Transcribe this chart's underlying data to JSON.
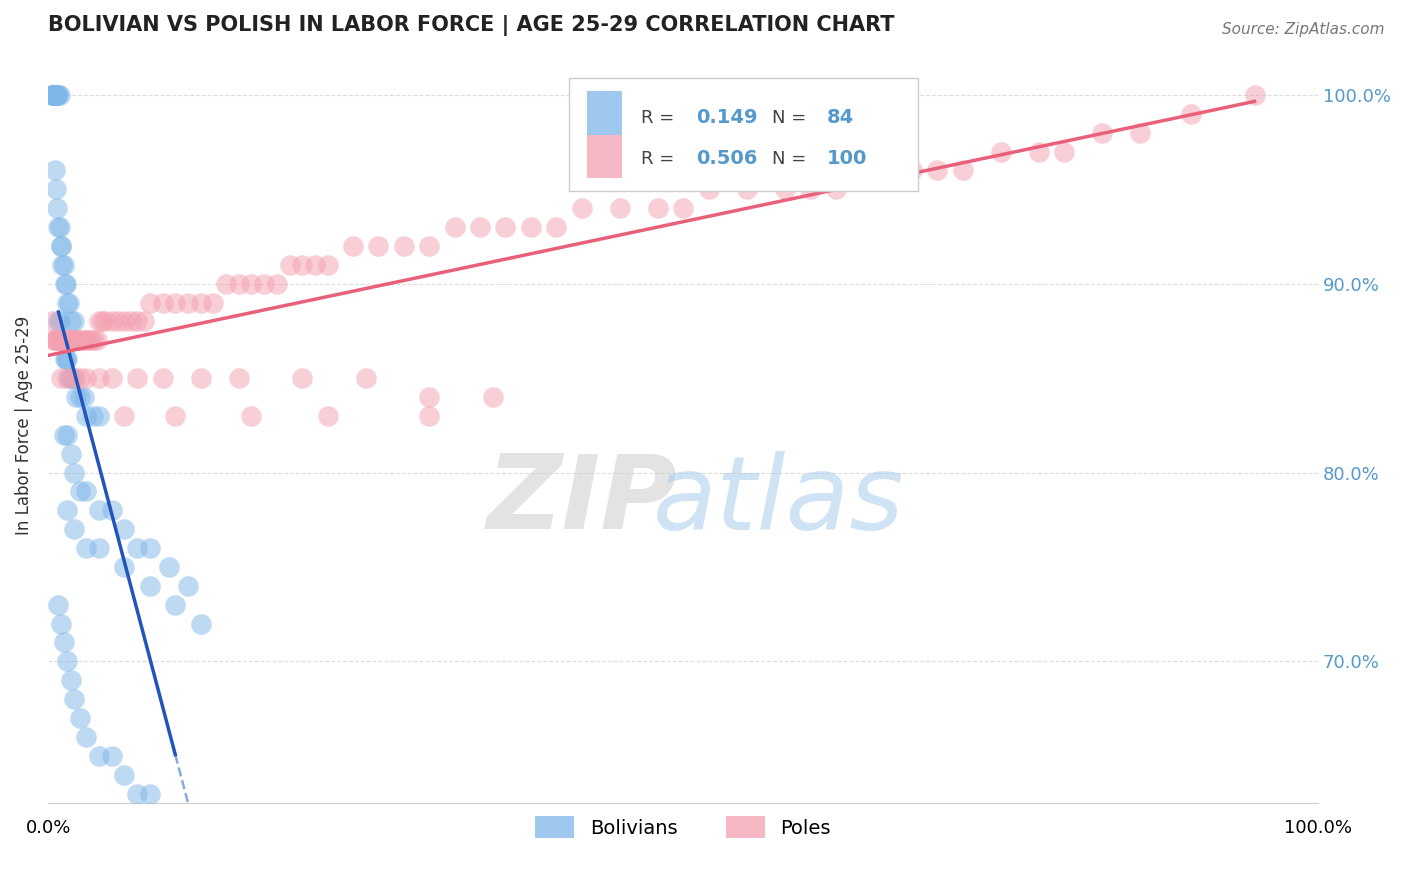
{
  "title": "BOLIVIAN VS POLISH IN LABOR FORCE | AGE 25-29 CORRELATION CHART",
  "source": "Source: ZipAtlas.com",
  "ylabel": "In Labor Force | Age 25-29",
  "xlim": [
    0.0,
    1.0
  ],
  "ylim": [
    0.625,
    1.025
  ],
  "yticks": [
    0.7,
    0.8,
    0.9,
    1.0
  ],
  "ytick_labels": [
    "70.0%",
    "80.0%",
    "90.0%",
    "100.0%"
  ],
  "bolivian_R": 0.149,
  "bolivian_N": 84,
  "polish_R": 0.506,
  "polish_N": 100,
  "bolivian_color": "#7EB6E8",
  "polish_color": "#F4A0B0",
  "bolivian_line_color": "#2255BB",
  "bolivian_dash_color": "#88AADD",
  "polish_line_color": "#E8607A",
  "background_color": "#FFFFFF",
  "legend_border_color": "#CCCCCC",
  "right_tick_color": "#5599CC",
  "title_color": "#222222",
  "source_color": "#777777",
  "ylabel_color": "#333333",
  "grid_color": "#DDDDDD",
  "watermark_zip_color": "#CCCCCC",
  "watermark_atlas_color": "#AACCEE"
}
